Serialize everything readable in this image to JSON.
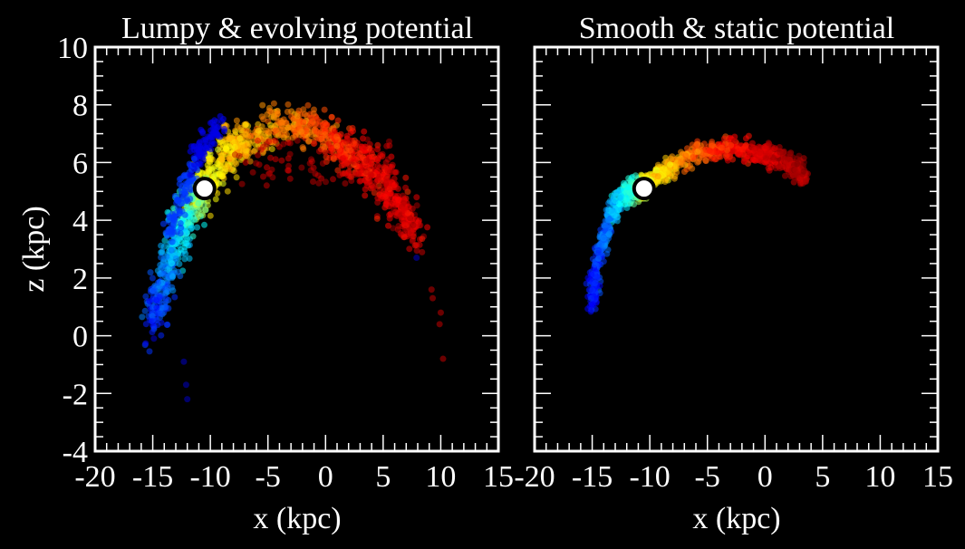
{
  "chart_data": [
    {
      "type": "scatter",
      "title": "Lumpy & evolving potential",
      "xlabel": "x (kpc)",
      "ylabel": "z (kpc)",
      "xlim": [
        -20,
        15
      ],
      "ylim": [
        -4,
        10
      ],
      "xticks": [
        "-20",
        "-15",
        "-10",
        "-5",
        "0",
        "5",
        "10",
        "15"
      ],
      "yticks": [
        "-4",
        "-2",
        "0",
        "2",
        "4",
        "6",
        "8",
        "10"
      ],
      "grid": false,
      "colormap": "jet (blue = trailing, red = leading)",
      "progenitor": {
        "x": -10.5,
        "z": 5.1,
        "color": "#ffffff"
      },
      "stream_track": [
        {
          "x": -15.0,
          "z": 0.5,
          "c": 0.15
        },
        {
          "x": -14.0,
          "z": 2.0,
          "c": 0.25
        },
        {
          "x": -12.8,
          "z": 3.6,
          "c": 0.35
        },
        {
          "x": -11.5,
          "z": 4.6,
          "c": 0.45
        },
        {
          "x": -10.5,
          "z": 5.1,
          "c": 0.62
        },
        {
          "x": -9.0,
          "z": 6.1,
          "c": 0.66
        },
        {
          "x": -7.0,
          "z": 6.8,
          "c": 0.7
        },
        {
          "x": -4.0,
          "z": 7.3,
          "c": 0.74
        },
        {
          "x": -1.0,
          "z": 7.2,
          "c": 0.78
        },
        {
          "x": 1.5,
          "z": 6.5,
          "c": 0.85
        },
        {
          "x": 4.0,
          "z": 5.8,
          "c": 0.88
        },
        {
          "x": 6.0,
          "z": 4.8,
          "c": 0.9
        },
        {
          "x": 7.8,
          "z": 3.4,
          "c": 0.92
        }
      ],
      "trailing_arm_offset": [
        {
          "x": -13.5,
          "z": 3.5,
          "c": 0.18
        },
        {
          "x": -11.5,
          "z": 6.0,
          "c": 0.1
        },
        {
          "x": -9.0,
          "z": 7.4,
          "c": 0.08
        }
      ],
      "outliers": [
        {
          "x": -12.3,
          "z": -0.9,
          "c": 0.05
        },
        {
          "x": -12.1,
          "z": -1.7,
          "c": 0.05
        },
        {
          "x": -12.0,
          "z": -2.2,
          "c": 0.05
        },
        {
          "x": -14.9,
          "z": -0.1,
          "c": 0.06
        },
        {
          "x": 9.2,
          "z": 1.6,
          "c": 0.95
        },
        {
          "x": 9.3,
          "z": 1.3,
          "c": 0.95
        },
        {
          "x": 10.0,
          "z": 0.8,
          "c": 0.95
        },
        {
          "x": 9.9,
          "z": 0.4,
          "c": 0.95
        },
        {
          "x": 10.2,
          "z": -0.8,
          "c": 0.95
        },
        {
          "x": 7.9,
          "z": 2.7,
          "c": 0.05
        }
      ]
    },
    {
      "type": "scatter",
      "title": "Smooth & static potential",
      "xlabel": "x (kpc)",
      "ylabel": "",
      "xlim": [
        -20,
        15
      ],
      "ylim": [
        -4,
        10
      ],
      "xticks": [
        "-20",
        "-15",
        "-10",
        "-5",
        "0",
        "5",
        "10",
        "15"
      ],
      "yticks": [],
      "grid": false,
      "colormap": "jet (blue = trailing, red = leading)",
      "progenitor": {
        "x": -10.5,
        "z": 5.1,
        "color": "#ffffff"
      },
      "stream_track": [
        {
          "x": -15.1,
          "z": 1.0,
          "c": 0.12
        },
        {
          "x": -14.6,
          "z": 2.5,
          "c": 0.18
        },
        {
          "x": -13.6,
          "z": 4.0,
          "c": 0.26
        },
        {
          "x": -12.2,
          "z": 4.9,
          "c": 0.38
        },
        {
          "x": -11.2,
          "z": 5.1,
          "c": 0.45
        },
        {
          "x": -10.5,
          "z": 5.1,
          "c": 0.62
        },
        {
          "x": -8.5,
          "z": 5.8,
          "c": 0.68
        },
        {
          "x": -6.0,
          "z": 6.3,
          "c": 0.78
        },
        {
          "x": -3.0,
          "z": 6.5,
          "c": 0.86
        },
        {
          "x": 0.0,
          "z": 6.3,
          "c": 0.92
        },
        {
          "x": 2.0,
          "z": 6.0,
          "c": 0.95
        },
        {
          "x": 3.5,
          "z": 5.5,
          "c": 0.97
        }
      ],
      "trailing_arm_offset": [],
      "outliers": []
    }
  ]
}
